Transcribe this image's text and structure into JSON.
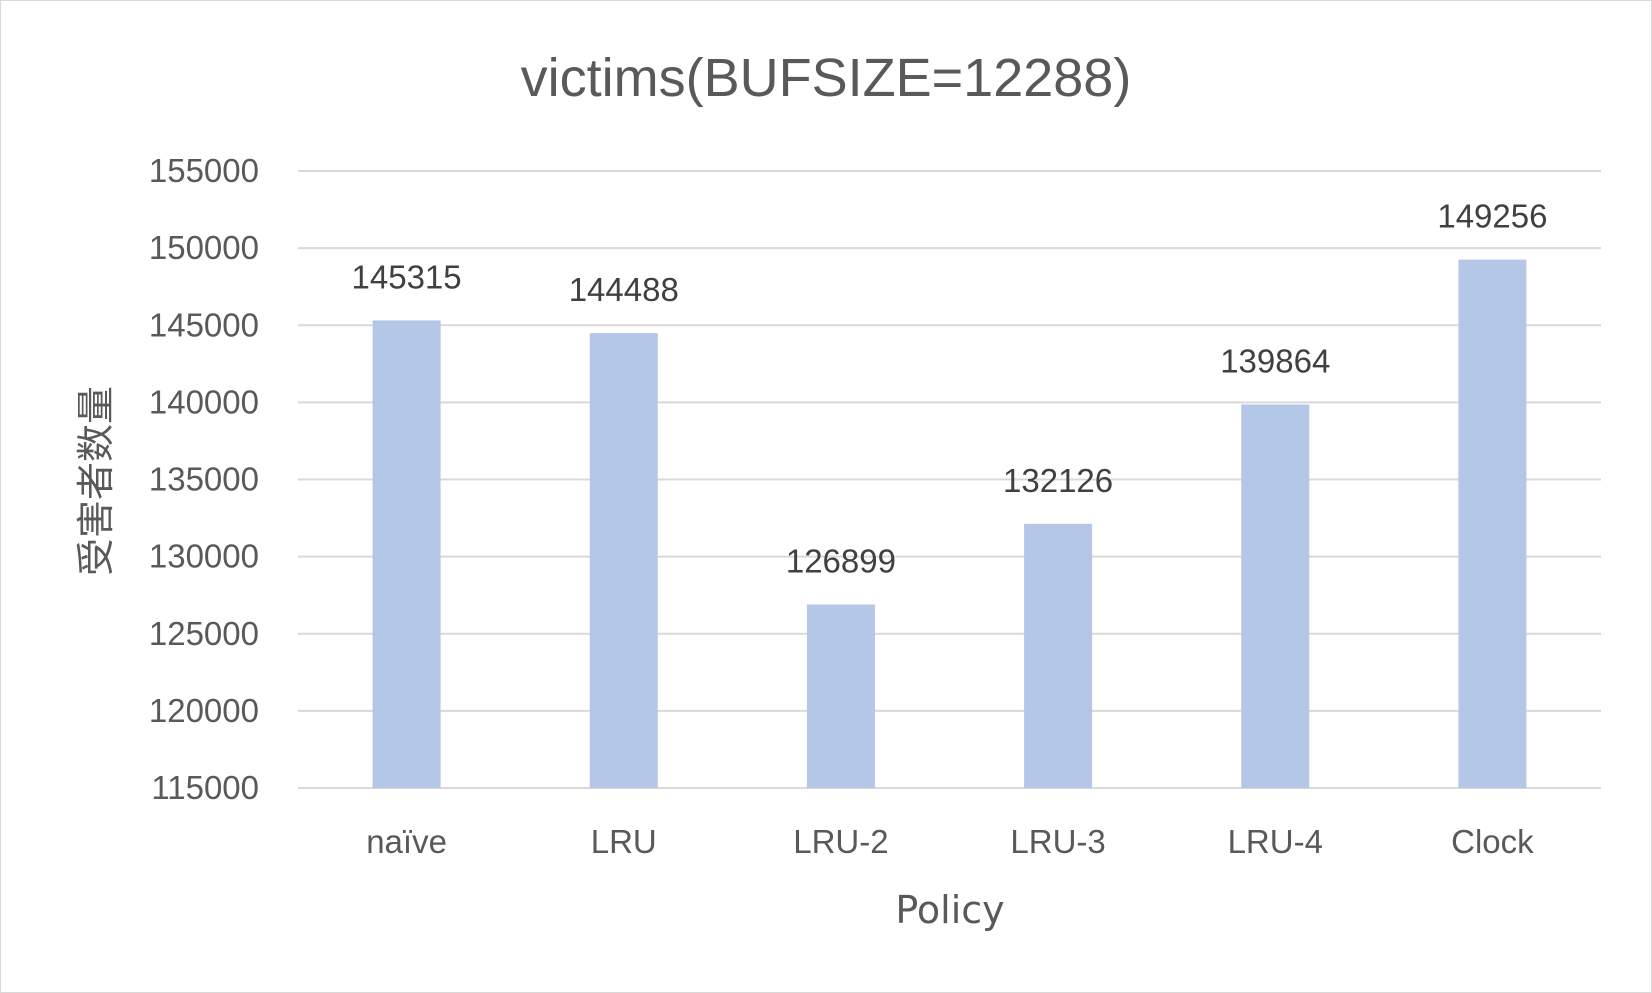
{
  "chart_data": {
    "type": "bar",
    "title": "victims(BUFSIZE=12288)",
    "xlabel": "Policy",
    "ylabel": "受害者数量",
    "categories": [
      "naïve",
      "LRU",
      "LRU-2",
      "LRU-3",
      "LRU-4",
      "Clock"
    ],
    "series": [
      {
        "values": [
          145315,
          144488,
          126899,
          132126,
          139864,
          149256
        ]
      }
    ],
    "data_labels": [
      "145315",
      "144488",
      "126899",
      "132126",
      "139864",
      "149256"
    ],
    "y_ticks": [
      "115000",
      "120000",
      "125000",
      "130000",
      "135000",
      "140000",
      "145000",
      "150000",
      "155000"
    ],
    "ylim": [
      115000,
      155000
    ],
    "grid": true,
    "legend": "none",
    "bar_color": "#b4c7e7",
    "grid_color": "#d9d9d9",
    "text_color": "#595959"
  }
}
